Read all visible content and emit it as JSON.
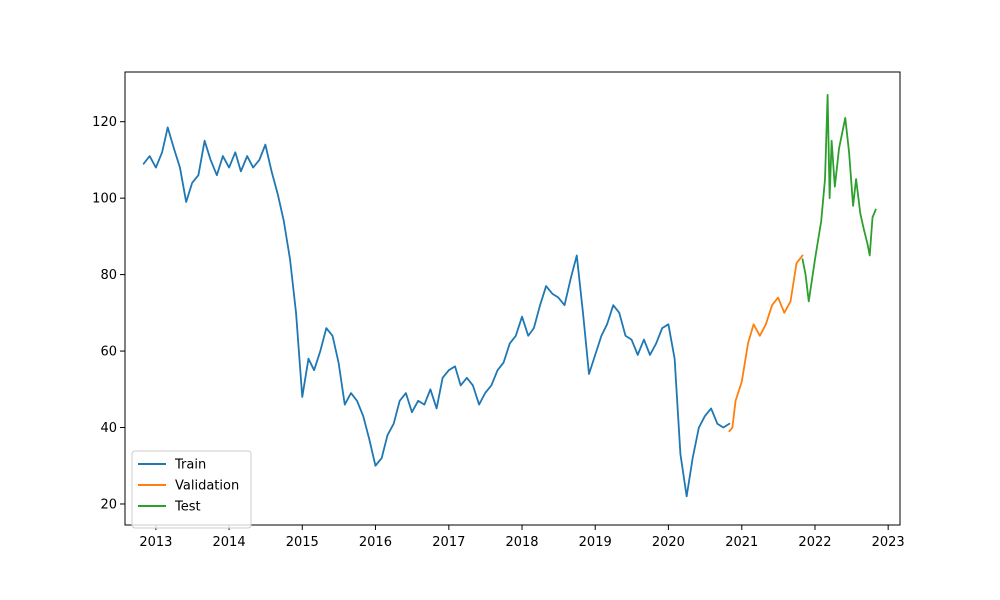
{
  "chart_data": {
    "type": "line",
    "title": "",
    "xlabel": "",
    "ylabel": "",
    "xlim": [
      "2012-07-31",
      "2023-03-01"
    ],
    "ylim": [
      14.5,
      133
    ],
    "x_ticks": [
      "2013",
      "2014",
      "2015",
      "2016",
      "2017",
      "2018",
      "2019",
      "2020",
      "2021",
      "2022",
      "2023"
    ],
    "y_ticks": [
      20,
      40,
      60,
      80,
      100,
      120
    ],
    "grid": false,
    "legend_position": "lower-left",
    "series": [
      {
        "name": "Train",
        "color": "#1f77b4",
        "points": [
          [
            "2012-11-01",
            109
          ],
          [
            "2012-12-01",
            111
          ],
          [
            "2013-01-01",
            108
          ],
          [
            "2013-02-01",
            112
          ],
          [
            "2013-03-01",
            118.5
          ],
          [
            "2013-04-01",
            113
          ],
          [
            "2013-05-01",
            108
          ],
          [
            "2013-06-01",
            99
          ],
          [
            "2013-07-01",
            104
          ],
          [
            "2013-08-01",
            106
          ],
          [
            "2013-09-01",
            115
          ],
          [
            "2013-10-01",
            110
          ],
          [
            "2013-11-01",
            106
          ],
          [
            "2013-12-01",
            111
          ],
          [
            "2014-01-01",
            108
          ],
          [
            "2014-02-01",
            112
          ],
          [
            "2014-03-01",
            107
          ],
          [
            "2014-04-01",
            111
          ],
          [
            "2014-05-01",
            108
          ],
          [
            "2014-06-01",
            110
          ],
          [
            "2014-07-01",
            114
          ],
          [
            "2014-08-01",
            107
          ],
          [
            "2014-09-01",
            101
          ],
          [
            "2014-10-01",
            94
          ],
          [
            "2014-11-01",
            84
          ],
          [
            "2014-12-01",
            70
          ],
          [
            "2015-01-01",
            48
          ],
          [
            "2015-02-01",
            58
          ],
          [
            "2015-03-01",
            55
          ],
          [
            "2015-04-01",
            60
          ],
          [
            "2015-05-01",
            66
          ],
          [
            "2015-06-01",
            64
          ],
          [
            "2015-07-01",
            57
          ],
          [
            "2015-08-01",
            46
          ],
          [
            "2015-09-01",
            49
          ],
          [
            "2015-10-01",
            47
          ],
          [
            "2015-11-01",
            43
          ],
          [
            "2015-12-01",
            37
          ],
          [
            "2016-01-01",
            30
          ],
          [
            "2016-02-01",
            32
          ],
          [
            "2016-03-01",
            38
          ],
          [
            "2016-04-01",
            41
          ],
          [
            "2016-05-01",
            47
          ],
          [
            "2016-06-01",
            49
          ],
          [
            "2016-07-01",
            44
          ],
          [
            "2016-08-01",
            47
          ],
          [
            "2016-09-01",
            46
          ],
          [
            "2016-10-01",
            50
          ],
          [
            "2016-11-01",
            45
          ],
          [
            "2016-12-01",
            53
          ],
          [
            "2017-01-01",
            55
          ],
          [
            "2017-02-01",
            56
          ],
          [
            "2017-03-01",
            51
          ],
          [
            "2017-04-01",
            53
          ],
          [
            "2017-05-01",
            51
          ],
          [
            "2017-06-01",
            46
          ],
          [
            "2017-07-01",
            49
          ],
          [
            "2017-08-01",
            51
          ],
          [
            "2017-09-01",
            55
          ],
          [
            "2017-10-01",
            57
          ],
          [
            "2017-11-01",
            62
          ],
          [
            "2017-12-01",
            64
          ],
          [
            "2018-01-01",
            69
          ],
          [
            "2018-02-01",
            64
          ],
          [
            "2018-03-01",
            66
          ],
          [
            "2018-04-01",
            72
          ],
          [
            "2018-05-01",
            77
          ],
          [
            "2018-06-01",
            75
          ],
          [
            "2018-07-01",
            74
          ],
          [
            "2018-08-01",
            72
          ],
          [
            "2018-09-01",
            79
          ],
          [
            "2018-10-01",
            85
          ],
          [
            "2018-11-01",
            70
          ],
          [
            "2018-12-01",
            54
          ],
          [
            "2019-01-01",
            59
          ],
          [
            "2019-02-01",
            64
          ],
          [
            "2019-03-01",
            67
          ],
          [
            "2019-04-01",
            72
          ],
          [
            "2019-05-01",
            70
          ],
          [
            "2019-06-01",
            64
          ],
          [
            "2019-07-01",
            63
          ],
          [
            "2019-08-01",
            59
          ],
          [
            "2019-09-01",
            63
          ],
          [
            "2019-10-01",
            59
          ],
          [
            "2019-11-01",
            62
          ],
          [
            "2019-12-01",
            66
          ],
          [
            "2020-01-01",
            67
          ],
          [
            "2020-02-01",
            58
          ],
          [
            "2020-03-01",
            33
          ],
          [
            "2020-04-01",
            22
          ],
          [
            "2020-05-01",
            32
          ],
          [
            "2020-06-01",
            40
          ],
          [
            "2020-07-01",
            43
          ],
          [
            "2020-08-01",
            45
          ],
          [
            "2020-09-01",
            41
          ],
          [
            "2020-10-01",
            40
          ],
          [
            "2020-10-31",
            41
          ]
        ]
      },
      {
        "name": "Validation",
        "color": "#ff7f0e",
        "points": [
          [
            "2020-10-31",
            39
          ],
          [
            "2020-11-15",
            40
          ],
          [
            "2020-12-01",
            47
          ],
          [
            "2021-01-01",
            52
          ],
          [
            "2021-02-01",
            62
          ],
          [
            "2021-03-01",
            67
          ],
          [
            "2021-04-01",
            64
          ],
          [
            "2021-05-01",
            67
          ],
          [
            "2021-06-01",
            72
          ],
          [
            "2021-07-01",
            74
          ],
          [
            "2021-08-01",
            70
          ],
          [
            "2021-09-01",
            73
          ],
          [
            "2021-10-01",
            83
          ],
          [
            "2021-10-31",
            85
          ]
        ]
      },
      {
        "name": "Test",
        "color": "#2ca02c",
        "points": [
          [
            "2021-10-31",
            84
          ],
          [
            "2021-11-15",
            80
          ],
          [
            "2021-12-01",
            73
          ],
          [
            "2022-01-01",
            84
          ],
          [
            "2022-02-01",
            94
          ],
          [
            "2022-02-20",
            105
          ],
          [
            "2022-03-05",
            127
          ],
          [
            "2022-03-15",
            100
          ],
          [
            "2022-03-25",
            115
          ],
          [
            "2022-04-10",
            103
          ],
          [
            "2022-05-01",
            113
          ],
          [
            "2022-06-01",
            121
          ],
          [
            "2022-06-20",
            112
          ],
          [
            "2022-07-10",
            98
          ],
          [
            "2022-07-25",
            105
          ],
          [
            "2022-08-15",
            96
          ],
          [
            "2022-09-01",
            92
          ],
          [
            "2022-09-20",
            88
          ],
          [
            "2022-10-01",
            85
          ],
          [
            "2022-10-15",
            95
          ],
          [
            "2022-10-31",
            97
          ]
        ]
      }
    ]
  }
}
